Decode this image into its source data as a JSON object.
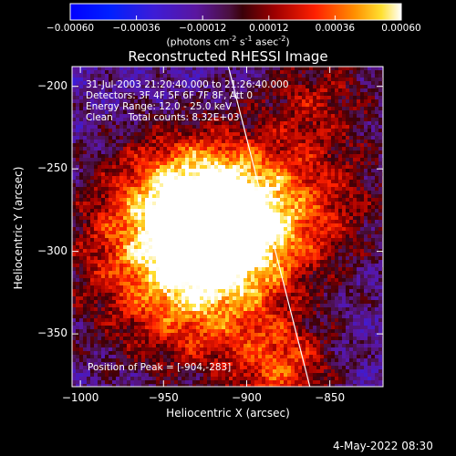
{
  "chart_data": {
    "type": "heatmap",
    "title": "Reconstructed RHESSI Image",
    "xlabel": "Heliocentric X (arcsec)",
    "ylabel": "Heliocentric Y (arcsec)",
    "xlim": [
      -1005,
      -818
    ],
    "ylim": [
      -382,
      -188
    ],
    "x_ticks": [
      -1000,
      -950,
      -900,
      -850
    ],
    "y_ticks": [
      -200,
      -250,
      -300,
      -350
    ],
    "colorbar": {
      "range": [
        -0.0006,
        0.0006
      ],
      "ticks": [
        "-0.00060",
        "-0.00036",
        "-0.00012",
        "0.00012",
        "0.00036",
        "0.00060"
      ],
      "label": "(photons cm-2 s-1 asec-2)"
    },
    "peak": {
      "x": -904,
      "y": -283
    },
    "limb_line": [
      [
        -911,
        -188
      ],
      [
        -862,
        -382
      ]
    ],
    "annotations": {
      "time": "31-Jul-2003 21:20:40.000 to 21:26:40.000",
      "detectors": "Detectors: 3F 4F 5F 6F 7F 8F, Att 0",
      "energy": "Energy Range: 12.0 - 25.0 keV",
      "clean": "Clean     Total counts: 8.32E+03",
      "peak_text": "Position of Peak = [-904,-283]"
    },
    "grid": false
  },
  "footer": {
    "date": "4-May-2022 08:30"
  }
}
